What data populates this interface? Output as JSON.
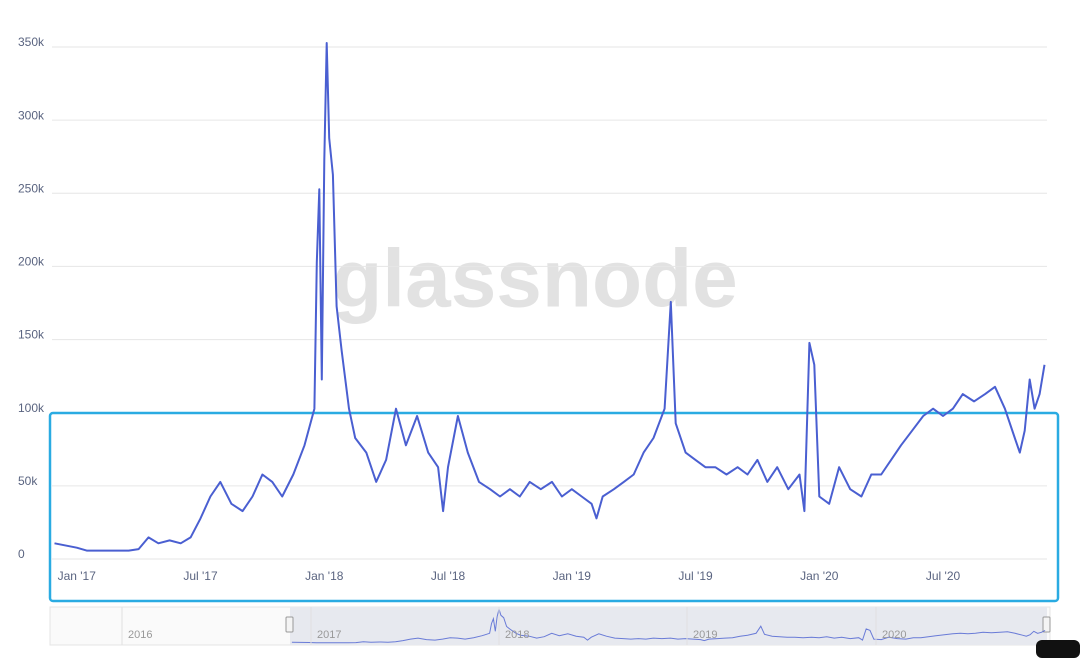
{
  "watermark": "glassnode",
  "chart_data": {
    "type": "line",
    "x": [
      2016.91,
      2017.0,
      2017.04,
      2017.08,
      2017.125,
      2017.17,
      2017.21,
      2017.25,
      2017.29,
      2017.33,
      2017.375,
      2017.42,
      2017.46,
      2017.5,
      2017.54,
      2017.58,
      2017.625,
      2017.67,
      2017.71,
      2017.75,
      2017.79,
      2017.83,
      2017.875,
      2017.92,
      2017.96,
      2017.97,
      2017.98,
      2017.99,
      2018.0,
      2018.01,
      2018.02,
      2018.035,
      2018.05,
      2018.07,
      2018.1,
      2018.125,
      2018.17,
      2018.21,
      2018.25,
      2018.29,
      2018.33,
      2018.375,
      2018.42,
      2018.46,
      2018.48,
      2018.5,
      2018.54,
      2018.58,
      2018.625,
      2018.67,
      2018.71,
      2018.75,
      2018.79,
      2018.83,
      2018.875,
      2018.92,
      2018.96,
      2019.0,
      2019.04,
      2019.08,
      2019.1,
      2019.125,
      2019.17,
      2019.21,
      2019.25,
      2019.29,
      2019.33,
      2019.375,
      2019.4,
      2019.42,
      2019.46,
      2019.5,
      2019.54,
      2019.58,
      2019.625,
      2019.67,
      2019.71,
      2019.75,
      2019.79,
      2019.83,
      2019.875,
      2019.92,
      2019.94,
      2019.96,
      2019.98,
      2020.0,
      2020.04,
      2020.08,
      2020.125,
      2020.17,
      2020.21,
      2020.25,
      2020.29,
      2020.33,
      2020.375,
      2020.42,
      2020.46,
      2020.5,
      2020.54,
      2020.58,
      2020.625,
      2020.67,
      2020.71,
      2020.75,
      2020.79,
      2020.81,
      2020.83,
      2020.85,
      2020.87,
      2020.89,
      2020.91
    ],
    "series": [
      {
        "color": "#4a5fd1",
        "values": [
          8000,
          5000,
          3000,
          3000,
          3000,
          3000,
          3000,
          4000,
          12000,
          8000,
          10000,
          8000,
          12000,
          25000,
          40000,
          50000,
          35000,
          30000,
          40000,
          55000,
          50000,
          40000,
          55000,
          75000,
          100000,
          200000,
          250000,
          120000,
          270000,
          350000,
          285000,
          260000,
          170000,
          140000,
          100000,
          80000,
          70000,
          50000,
          65000,
          100000,
          75000,
          95000,
          70000,
          60000,
          30000,
          60000,
          95000,
          70000,
          50000,
          45000,
          40000,
          45000,
          40000,
          50000,
          45000,
          50000,
          40000,
          45000,
          40000,
          35000,
          25000,
          40000,
          45000,
          50000,
          55000,
          70000,
          80000,
          100000,
          173000,
          90000,
          70000,
          65000,
          60000,
          60000,
          55000,
          60000,
          55000,
          65000,
          50000,
          60000,
          45000,
          55000,
          30000,
          145000,
          130000,
          40000,
          35000,
          60000,
          45000,
          40000,
          55000,
          55000,
          65000,
          75000,
          85000,
          95000,
          100000,
          95000,
          100000,
          110000,
          105000,
          110000,
          115000,
          100000,
          80000,
          70000,
          85000,
          120000,
          100000,
          110000,
          130000
        ]
      }
    ],
    "xlim": [
      2016.9,
      2020.92
    ],
    "xticks": [
      {
        "value": 2017,
        "label": "Jan '17"
      },
      {
        "value": 2017.5,
        "label": "Jul '17"
      },
      {
        "value": 2018,
        "label": "Jan '18"
      },
      {
        "value": 2018.5,
        "label": "Jul '18"
      },
      {
        "value": 2019,
        "label": "Jan '19"
      },
      {
        "value": 2019.5,
        "label": "Jul '19"
      },
      {
        "value": 2020,
        "label": "Jan '20"
      },
      {
        "value": 2020.5,
        "label": "Jul '20"
      }
    ],
    "ylim": [
      0,
      350000
    ],
    "yticks": [
      0,
      {
        "value": 50000,
        "label": "50k"
      },
      {
        "value": 100000,
        "label": "100k"
      },
      {
        "value": 150000,
        "label": "150k"
      },
      {
        "value": 200000,
        "label": "200k"
      },
      {
        "value": 250000,
        "label": "250k"
      },
      {
        "value": 300000,
        "label": "300k"
      },
      {
        "value": 350000,
        "label": "350k"
      }
    ],
    "grid": true
  },
  "navigator": {
    "labels": [
      "2016",
      "2017",
      "2018",
      "2019",
      "2020"
    ]
  }
}
